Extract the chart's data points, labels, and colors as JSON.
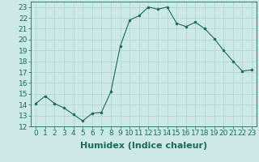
{
  "x": [
    0,
    1,
    2,
    3,
    4,
    5,
    6,
    7,
    8,
    9,
    10,
    11,
    12,
    13,
    14,
    15,
    16,
    17,
    18,
    19,
    20,
    21,
    22,
    23
  ],
  "y": [
    14.1,
    14.8,
    14.1,
    13.7,
    13.1,
    12.5,
    13.2,
    13.3,
    15.2,
    19.4,
    21.8,
    22.2,
    23.0,
    22.8,
    23.0,
    21.5,
    21.2,
    21.6,
    21.0,
    20.1,
    19.0,
    18.0,
    17.1,
    17.2
  ],
  "line_color": "#1a6b5a",
  "marker": "o",
  "marker_size": 2.0,
  "bg_color": "#cce8e8",
  "grid_color": "#b0d0d0",
  "xlabel": "Humidex (Indice chaleur)",
  "xlabel_fontsize": 8,
  "tick_fontsize": 6.5,
  "ylim": [
    12,
    23.5
  ],
  "xlim": [
    -0.5,
    23.5
  ],
  "yticks": [
    12,
    13,
    14,
    15,
    16,
    17,
    18,
    19,
    20,
    21,
    22,
    23
  ],
  "xticks": [
    0,
    1,
    2,
    3,
    4,
    5,
    6,
    7,
    8,
    9,
    10,
    11,
    12,
    13,
    14,
    15,
    16,
    17,
    18,
    19,
    20,
    21,
    22,
    23
  ]
}
